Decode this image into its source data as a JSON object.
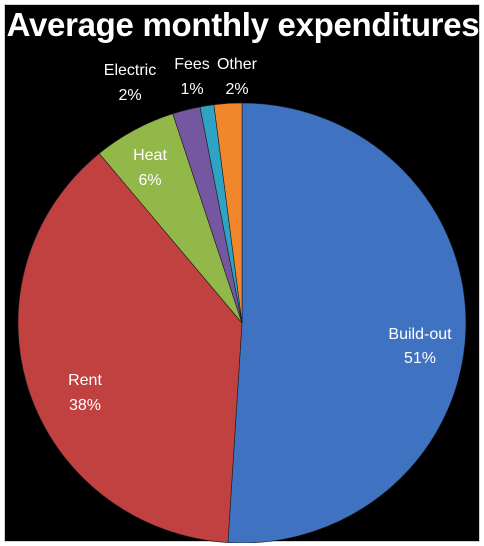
{
  "chart_data": {
    "type": "pie",
    "title": "Average monthly expenditures",
    "slices": [
      {
        "label": "Build-out",
        "value": 51,
        "value_label": "51%",
        "color": "#3f73c1"
      },
      {
        "label": "Rent",
        "value": 38,
        "value_label": "38%",
        "color": "#c0413f"
      },
      {
        "label": "Heat",
        "value": 6,
        "value_label": "6%",
        "color": "#92b84a"
      },
      {
        "label": "Electric",
        "value": 2,
        "value_label": "2%",
        "color": "#7556a0"
      },
      {
        "label": "Fees",
        "value": 1,
        "value_label": "1%",
        "color": "#2ea3c4"
      },
      {
        "label": "Other",
        "value": 2,
        "value_label": "2%",
        "color": "#f0882b"
      }
    ],
    "start_angle": "12 o'clock",
    "direction": "clockwise",
    "legend": "none (labels on/next to slices)"
  }
}
